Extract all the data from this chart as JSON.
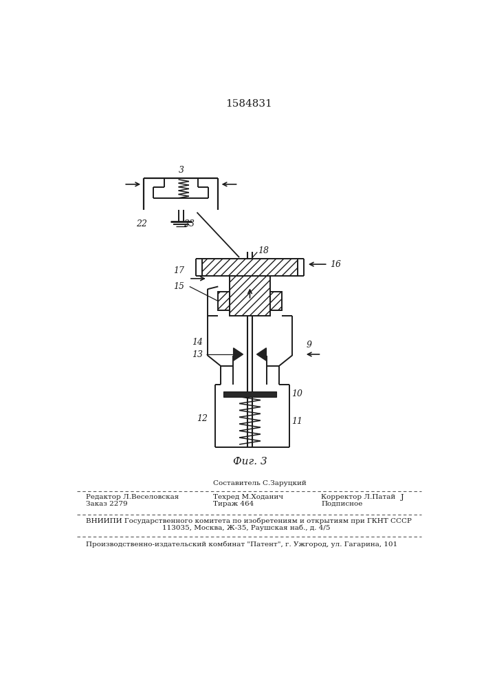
{
  "title": "1584831",
  "fig_label": "Фиг. 3",
  "bg_color": "#ffffff",
  "line_color": "#1a1a1a",
  "footer_editor": "Редактор Л.Веселовская",
  "footer_composer": "Составитель С.Заруцкий",
  "footer_techred": "Техред М.Ходанич",
  "footer_corrector": "Корректор Л.Патай",
  "footer_order": "Заказ 2279",
  "footer_tirazh": "Тираж 464",
  "footer_podp": "Подписное",
  "footer_vniip1": "ВНИИПИ Государственного комитета по изобретениям и открытиям при ГКНТ СССР",
  "footer_vniip2": "113035, Москва, Ж-35, Раушская наб., д. 4/5",
  "footer_prod": "Производственно-издательский комбинат \"Патент\", г. Ужгород, ул. Гагарина, 101"
}
